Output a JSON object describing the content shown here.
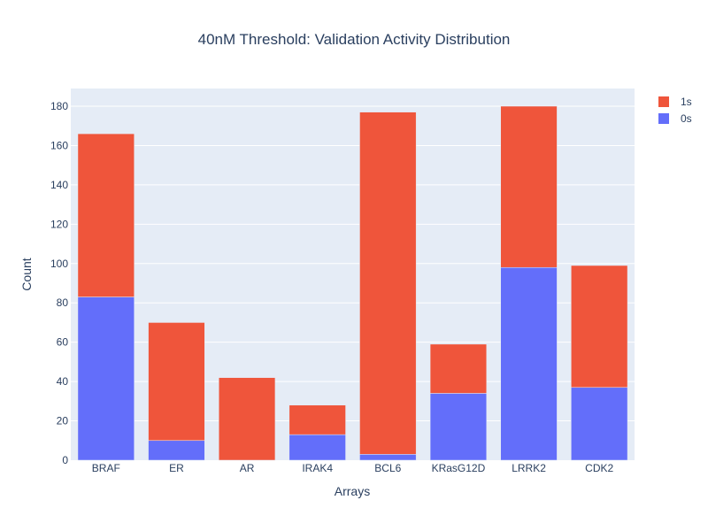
{
  "chart_data": {
    "type": "bar",
    "barmode": "stack",
    "title": "40nM Threshold: Validation Activity Distribution",
    "xlabel": "Arrays",
    "ylabel": "Count",
    "categories": [
      "BRAF",
      "ER",
      "AR",
      "IRAK4",
      "BCL6",
      "KRasG12D",
      "LRRK2",
      "CDK2"
    ],
    "series": [
      {
        "name": "0s",
        "color": "#636efa",
        "values": [
          83,
          10,
          0,
          13,
          3,
          34,
          98,
          37
        ]
      },
      {
        "name": "1s",
        "color": "#ef553b",
        "values": [
          83,
          60,
          42,
          15,
          174,
          25,
          82,
          62
        ]
      }
    ],
    "ylim": [
      0,
      189
    ],
    "yticks": [
      0,
      20,
      40,
      60,
      80,
      100,
      120,
      140,
      160,
      180
    ],
    "grid": true,
    "legend_placement": "top-right",
    "legend_order": [
      "1s",
      "0s"
    ],
    "colors": {
      "plot_bg": "#e5ecf6",
      "grid": "#ffffff",
      "text": "#2a3f5f"
    }
  }
}
